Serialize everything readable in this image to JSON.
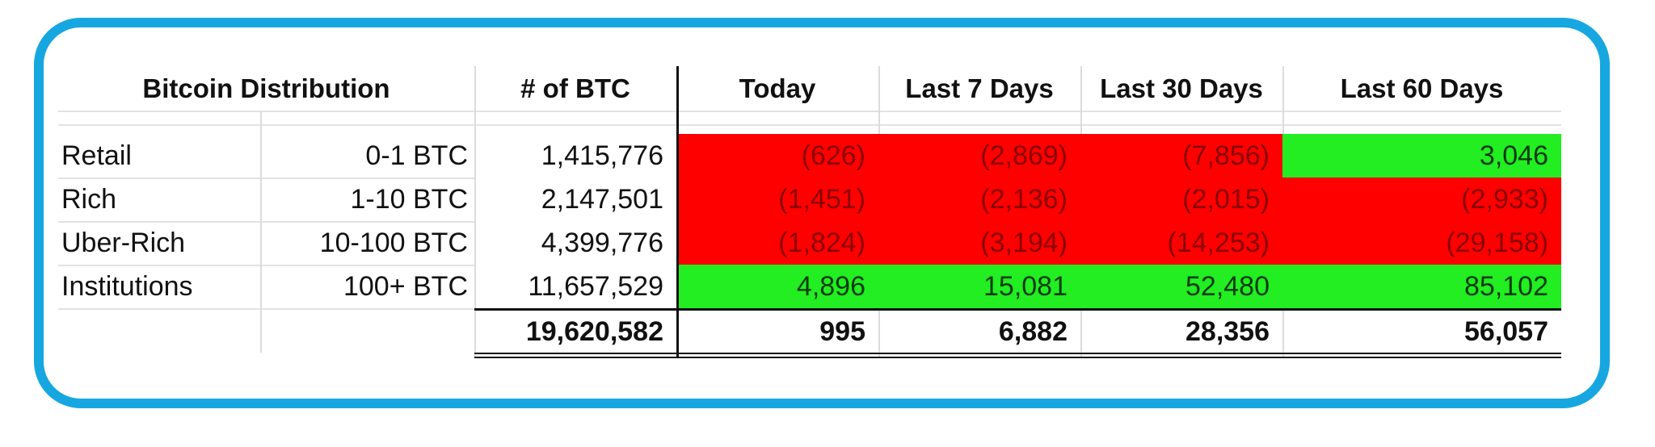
{
  "table": {
    "title": "Bitcoin Distribution",
    "columns": [
      "# of BTC",
      "Today",
      "Last 7 Days",
      "Last 30 Days",
      "Last 60 Days"
    ],
    "rows": [
      {
        "group": "Retail",
        "range": "0-1 BTC",
        "btc": "1,415,776",
        "today": "(626)",
        "d7": "(2,869)",
        "d30": "(7,856)",
        "d60": "3,046"
      },
      {
        "group": "Rich",
        "range": "1-10 BTC",
        "btc": "2,147,501",
        "today": "(1,451)",
        "d7": "(2,136)",
        "d30": "(2,015)",
        "d60": "(2,933)"
      },
      {
        "group": "Uber-Rich",
        "range": "10-100 BTC",
        "btc": "4,399,776",
        "today": "(1,824)",
        "d7": "(3,194)",
        "d30": "(14,253)",
        "d60": "(29,158)"
      },
      {
        "group": "Institutions",
        "range": "100+ BTC",
        "btc": "11,657,529",
        "today": "4,896",
        "d7": "15,081",
        "d30": "52,480",
        "d60": "85,102"
      }
    ],
    "totals": {
      "btc": "19,620,582",
      "today": "995",
      "d7": "6,882",
      "d30": "28,356",
      "d60": "56,057"
    },
    "colors": {
      "frame": "#17a7e0",
      "negative_bg": "#ff0000",
      "positive_bg": "#22ee22",
      "negative_text": "#8a0000"
    }
  }
}
